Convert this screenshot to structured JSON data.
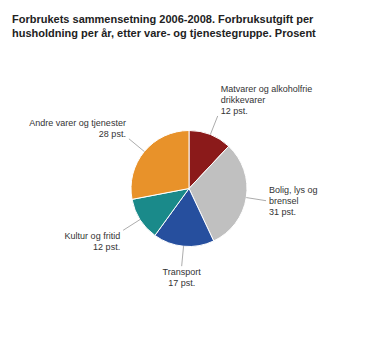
{
  "chart_data": {
    "type": "pie",
    "title": "Forbrukets sammensetning 2006-2008. Forbruksutgift per\nhusholdning per år, etter vare- og tjenestegruppe. Prosent",
    "categories": [
      "Matvarer og alkoholfrie\ndrikkevarer\n12 pst.",
      "Bolig, lys og\nbrensel\n31 pst.",
      "Transport\n17 pst.",
      "Kultur og fritid\n12 pst.",
      "Andre varer og tjenester\n28 pst."
    ],
    "values": [
      12,
      31,
      17,
      12,
      28
    ],
    "colors": [
      "#8B1A1A",
      "#C0C0C0",
      "#264F9E",
      "#1A8A8A",
      "#E8922A"
    ]
  }
}
